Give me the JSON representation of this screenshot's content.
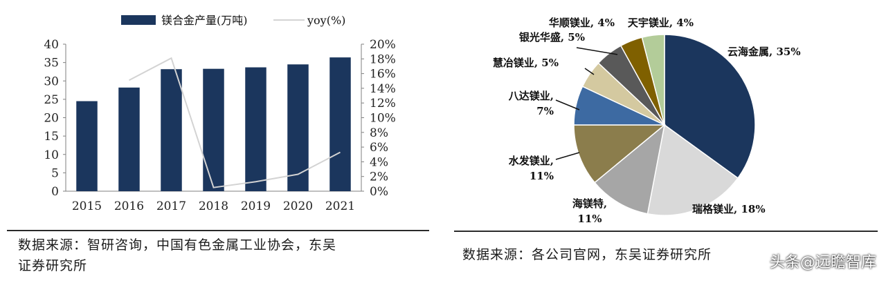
{
  "left_panel": {
    "source_line1": "数据来源：智研咨询，中国有色金属工业协会，东吴",
    "source_line2": "证券研究所"
  },
  "right_panel": {
    "source": "数据来源：各公司官网，东吴证券研究所"
  },
  "watermark": "头条@远瞻智库",
  "colors": {
    "bar": "#1b365d",
    "yoy_line": "#d3d3d3",
    "rule": "#2a2a2a"
  },
  "chart_data": [
    {
      "type": "bar",
      "categories": [
        "2015",
        "2016",
        "2017",
        "2018",
        "2019",
        "2020",
        "2021"
      ],
      "series": [
        {
          "name": "镁合金产量(万吨)",
          "axis": "left",
          "values": [
            24.5,
            28.2,
            33.2,
            33.3,
            33.7,
            34.5,
            36.4
          ]
        },
        {
          "name": "yoy(%)",
          "axis": "right",
          "type": "line",
          "values": [
            null,
            15.1,
            18.1,
            0.5,
            1.3,
            2.3,
            5.3
          ]
        }
      ],
      "ylim": [
        0,
        40
      ],
      "yticks": [
        "0",
        "5",
        "10",
        "15",
        "20",
        "25",
        "30",
        "35",
        "40"
      ],
      "y2lim": [
        0,
        20
      ],
      "y2ticks": [
        "0%",
        "2%",
        "4%",
        "6%",
        "8%",
        "10%",
        "12%",
        "14%",
        "16%",
        "18%",
        "20%"
      ],
      "legend": "top",
      "grid": false
    },
    {
      "type": "pie",
      "slices": [
        {
          "label": "云海金属",
          "value": 35,
          "pct": "35%",
          "color": "#1b365d"
        },
        {
          "label": "瑞格镁业",
          "value": 18,
          "pct": "18%",
          "color": "#d9d9d9"
        },
        {
          "label": "海镁特",
          "value": 11,
          "pct": "11%",
          "color": "#a6a6a6"
        },
        {
          "label": "水发镁业",
          "value": 11,
          "pct": "11%",
          "color": "#8b7d4c"
        },
        {
          "label": "八达镁业",
          "value": 7,
          "pct": "7%",
          "color": "#3d6aa2"
        },
        {
          "label": "慧冶镁业",
          "value": 5,
          "pct": "5%",
          "color": "#d4c9a0"
        },
        {
          "label": "银光华盛",
          "value": 5,
          "pct": "5%",
          "color": "#595959"
        },
        {
          "label": "华顺镁业",
          "value": 4,
          "pct": "4%",
          "color": "#7f6000"
        },
        {
          "label": "天宇镁业",
          "value": 4,
          "pct": "4%",
          "color": "#b3cc99"
        }
      ],
      "legend": "none"
    }
  ]
}
